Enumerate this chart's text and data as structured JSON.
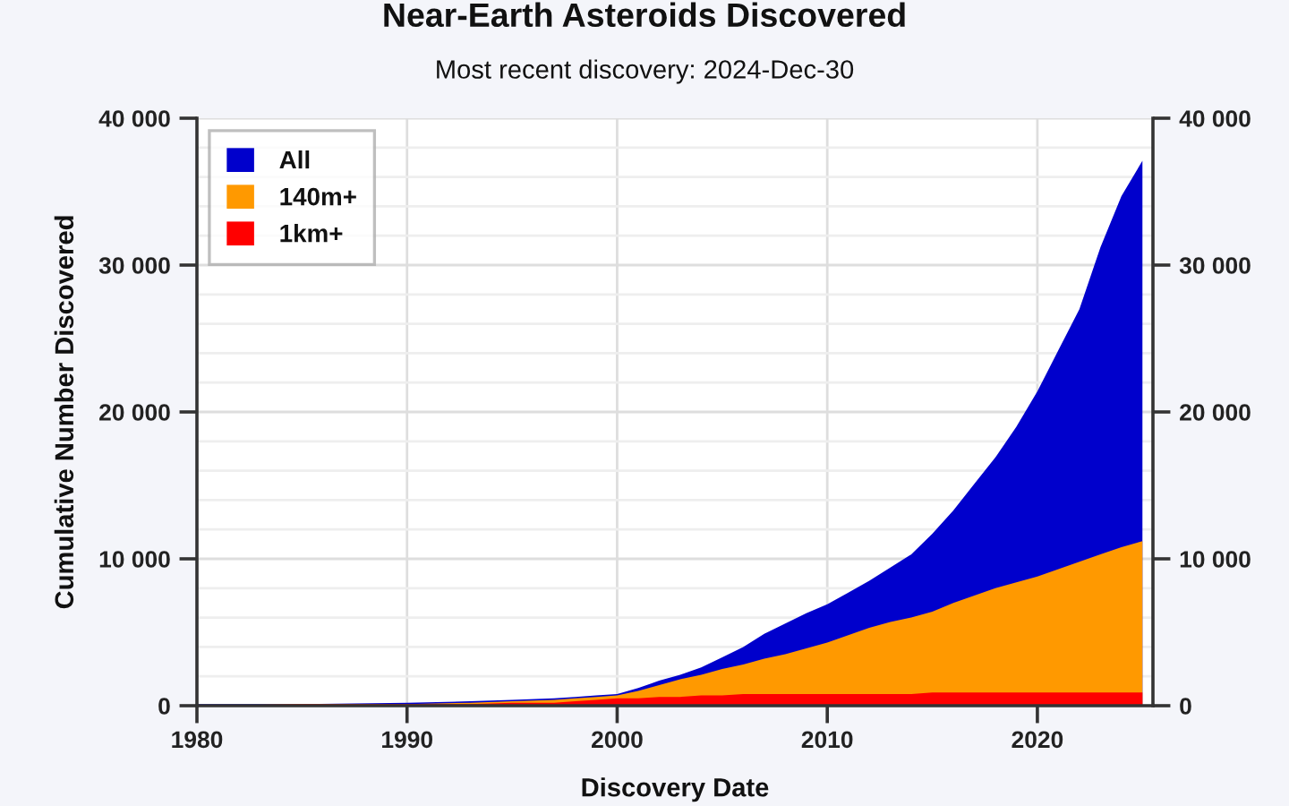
{
  "chart_data": {
    "type": "area",
    "title": "Near-Earth Asteroids Discovered",
    "subtitle": "Most recent discovery: 2024-Dec-30",
    "xlabel": "Discovery Date",
    "ylabel": "Cumulative Number Discovered",
    "x": [
      1980,
      1985,
      1990,
      1993,
      1995,
      1997,
      1998,
      1999,
      2000,
      2001,
      2002,
      2003,
      2004,
      2005,
      2006,
      2007,
      2008,
      2009,
      2010,
      2011,
      2012,
      2013,
      2014,
      2015,
      2016,
      2017,
      2018,
      2019,
      2020,
      2021,
      2022,
      2023,
      2024,
      2025
    ],
    "series": [
      {
        "name": "All",
        "color": "#0000cc",
        "values": [
          100,
          100,
          200,
          300,
          400,
          500,
          600,
          700,
          800,
          1200,
          1700,
          2100,
          2600,
          3300,
          4000,
          4900,
          5600,
          6300,
          6900,
          7700,
          8500,
          9400,
          10300,
          11700,
          13300,
          15100,
          16900,
          19000,
          21400,
          24200,
          27000,
          31200,
          34700,
          37100
        ]
      },
      {
        "name": "140m+",
        "color": "#ff9900",
        "values": [
          0,
          100,
          100,
          200,
          300,
          400,
          500,
          600,
          700,
          1000,
          1400,
          1800,
          2100,
          2500,
          2800,
          3200,
          3500,
          3900,
          4300,
          4800,
          5300,
          5700,
          6000,
          6400,
          7000,
          7500,
          8000,
          8400,
          8800,
          9300,
          9800,
          10300,
          10800,
          11200
        ]
      },
      {
        "name": "1km+",
        "color": "#ff0000",
        "values": [
          0,
          100,
          100,
          100,
          200,
          200,
          300,
          400,
          500,
          500,
          600,
          600,
          700,
          700,
          800,
          800,
          800,
          800,
          800,
          800,
          800,
          800,
          800,
          900,
          900,
          900,
          900,
          900,
          900,
          900,
          900,
          900,
          900,
          900
        ]
      }
    ],
    "xlim": [
      1980,
      2025.5
    ],
    "xticks": [
      1980,
      1990,
      2000,
      2010,
      2020
    ],
    "ylim": [
      0,
      40000
    ],
    "yticks": [
      0,
      {
        "value": 2000,
        "label": null
      },
      {
        "value": 4000,
        "label": null
      },
      {
        "value": 6000,
        "label": null
      },
      {
        "value": 8000,
        "label": null
      },
      {
        "value": 10000,
        "label": "10 000"
      },
      {
        "value": 12000,
        "label": null
      },
      {
        "value": 14000,
        "label": null
      },
      {
        "value": 16000,
        "label": null
      },
      {
        "value": 18000,
        "label": null
      },
      {
        "value": 20000,
        "label": "20 000"
      },
      {
        "value": 22000,
        "label": null
      },
      {
        "value": 24000,
        "label": null
      },
      {
        "value": 26000,
        "label": null
      },
      {
        "value": 28000,
        "label": null
      },
      {
        "value": 30000,
        "label": "30 000"
      },
      {
        "value": 32000,
        "label": null
      },
      {
        "value": 34000,
        "label": null
      },
      {
        "value": 36000,
        "label": null
      },
      {
        "value": 38000,
        "label": null
      },
      {
        "value": 40000,
        "label": "40 000"
      }
    ],
    "y2lim": [
      0,
      40000
    ],
    "y2ticks": [
      0,
      {
        "value": 10000,
        "label": "10 000"
      },
      {
        "value": 20000,
        "label": "20 000"
      },
      {
        "value": 30000,
        "label": "30 000"
      },
      {
        "value": 40000,
        "label": "40 000"
      }
    ],
    "grid": true,
    "legend": "top left"
  }
}
